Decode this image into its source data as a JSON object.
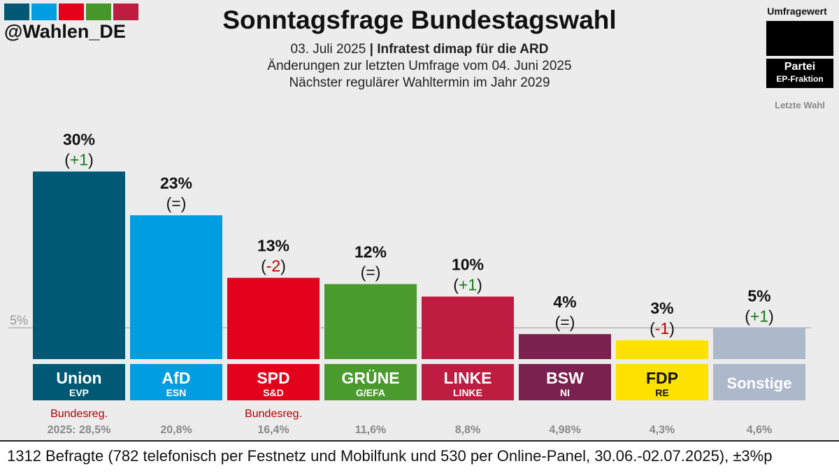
{
  "header": {
    "logo_colors": [
      "#005974",
      "#009ee0",
      "#e2001a",
      "#46962b",
      "#be1c41"
    ],
    "handle": "@Wahlen_DE",
    "title": "Sonntagsfrage Bundestagswahl",
    "date": "03. Juli 2025",
    "separator": "|",
    "institute": "Infratest dimap für die ARD",
    "changes": "Änderungen zur letzten Umfrage vom 04. Juni 2025",
    "next_election": "Nächster regulärer Wahltermin im Jahr 2029"
  },
  "legend": {
    "title": "Umfragewert",
    "party": "Partei",
    "fraction": "EP-Fraktion",
    "last": "Letzte Wahl"
  },
  "footer": {
    "text": "1312 Befragte (782 telefonisch per Festnetz und Mobilfunk und 530 per Online-Panel, 30.06.-02.07.2025), ±3%p"
  },
  "chart_data": {
    "type": "bar",
    "title": "Sonntagsfrage Bundestagswahl",
    "reference_line": {
      "value": 5,
      "label": "5%"
    },
    "ylim": [
      0,
      30
    ],
    "categories": [
      "Union",
      "AfD",
      "SPD",
      "GRÜNE",
      "LINKE",
      "BSW",
      "FDP",
      "Sonstige"
    ],
    "values": [
      30,
      23,
      13,
      12,
      10,
      4,
      3,
      5
    ],
    "bars": [
      {
        "party": "Union",
        "fraction": "EVP",
        "value": 30,
        "label": "30%",
        "change": "+1",
        "change_dir": "up",
        "color": "#005974",
        "text_color": "#ffffff",
        "gov": "Bundesreg.",
        "last": "2025: 28,5%"
      },
      {
        "party": "AfD",
        "fraction": "ESN",
        "value": 23,
        "label": "23%",
        "change": "=",
        "change_dir": "same",
        "color": "#009ee0",
        "text_color": "#ffffff",
        "gov": "",
        "last": "20,8%"
      },
      {
        "party": "SPD",
        "fraction": "S&D",
        "value": 13,
        "label": "13%",
        "change": "-2",
        "change_dir": "down",
        "color": "#e2001a",
        "text_color": "#ffffff",
        "gov": "Bundesreg.",
        "last": "16,4%"
      },
      {
        "party": "GRÜNE",
        "fraction": "G/EFA",
        "value": 12,
        "label": "12%",
        "change": "=",
        "change_dir": "same",
        "color": "#4a9a2e",
        "text_color": "#ffffff",
        "gov": "",
        "last": "11,6%"
      },
      {
        "party": "LINKE",
        "fraction": "LINKE",
        "value": 10,
        "label": "10%",
        "change": "+1",
        "change_dir": "up",
        "color": "#be1c41",
        "text_color": "#ffffff",
        "gov": "",
        "last": "8,8%"
      },
      {
        "party": "BSW",
        "fraction": "NI",
        "value": 4,
        "label": "4%",
        "change": "=",
        "change_dir": "same",
        "color": "#7b2150",
        "text_color": "#ffffff",
        "gov": "",
        "last": "4,98%"
      },
      {
        "party": "FDP",
        "fraction": "RE",
        "value": 3,
        "label": "3%",
        "change": "-1",
        "change_dir": "down",
        "color": "#ffe100",
        "text_color": "#111111",
        "gov": "",
        "last": "4,3%"
      },
      {
        "party": "Sonstige",
        "fraction": "",
        "value": 5,
        "label": "5%",
        "change": "+1",
        "change_dir": "up",
        "color": "#adb8cb",
        "text_color": "#ffffff",
        "gov": "",
        "last": "4,6%"
      }
    ],
    "change_colors": {
      "up": "#1a7a1a",
      "down": "#c00000",
      "same": "#111111"
    },
    "gov_color": "#b00000",
    "last_color": "#888888"
  }
}
